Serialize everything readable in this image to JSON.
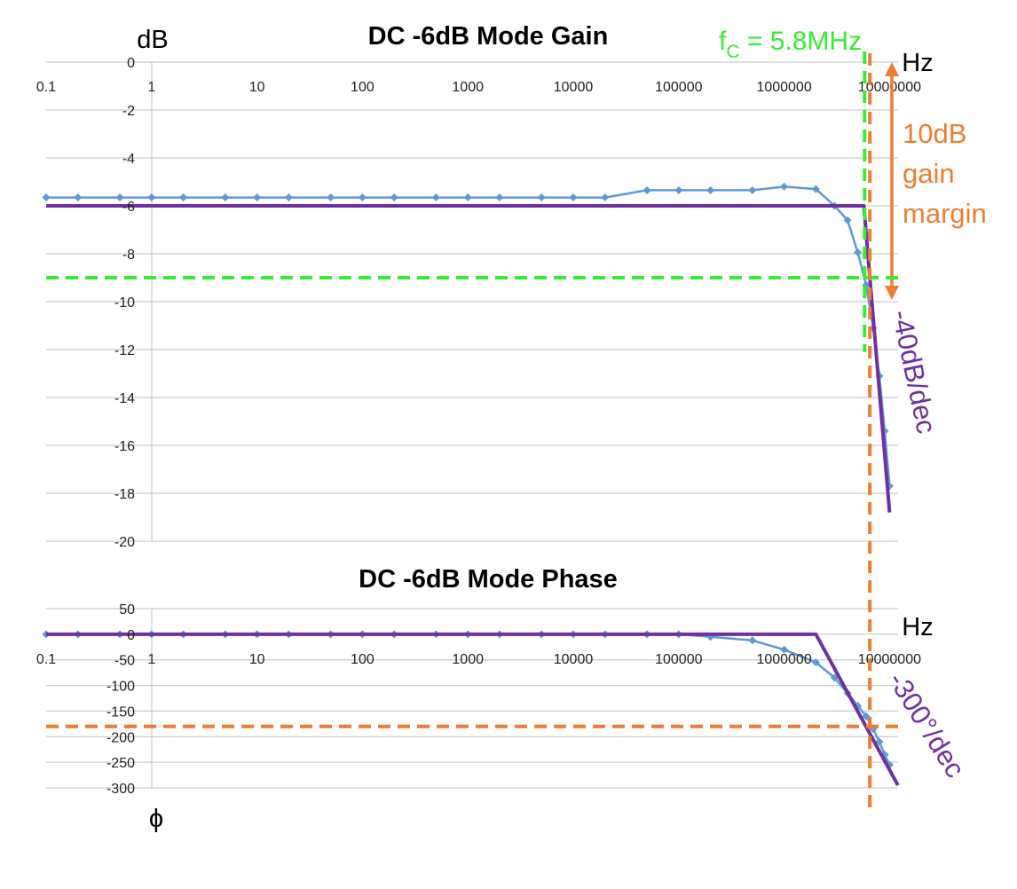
{
  "chart_data": [
    {
      "type": "line",
      "title": "DC -6dB Mode Gain",
      "ylabel": "dB",
      "xlabel": "Hz",
      "xscale": "log",
      "xlim": [
        0.1,
        10000000
      ],
      "ylim": [
        -20,
        0
      ],
      "x_tick_labels": [
        "0.1",
        "1",
        "10",
        "100",
        "1000",
        "10000",
        "100000",
        "1000000",
        "10000000"
      ],
      "y_tick_labels": [
        "0",
        "-2",
        "-4",
        "-6",
        "-8",
        "-10",
        "-12",
        "-14",
        "-16",
        "-18",
        "-20"
      ],
      "grid": true,
      "series": [
        {
          "color": "#5B9BD5",
          "marker": "diamond",
          "x": [
            0.1,
            0.2,
            0.5,
            1,
            2,
            5,
            10,
            20,
            50,
            100,
            200,
            500,
            1000,
            2000,
            5000,
            10000,
            20000,
            50000,
            100000,
            200000,
            500000,
            1000000,
            2000000,
            3000000,
            4000000,
            5000000,
            6000000,
            7000000,
            8000000,
            9000000,
            10000000
          ],
          "y": [
            -5.65,
            -5.65,
            -5.65,
            -5.65,
            -5.65,
            -5.65,
            -5.65,
            -5.65,
            -5.65,
            -5.65,
            -5.65,
            -5.65,
            -5.65,
            -5.65,
            -5.65,
            -5.65,
            -5.65,
            -5.35,
            -5.35,
            -5.35,
            -5.35,
            -5.2,
            -5.3,
            -6.0,
            -6.6,
            -7.95,
            -9.3,
            -11.1,
            -13.1,
            -15.4,
            -17.7
          ]
        },
        {
          "color": "#7030A0",
          "marker": "none",
          "x": [
            0.1,
            5700000,
            10000000
          ],
          "y": [
            -6.0,
            -6.0,
            -18.8
          ]
        }
      ],
      "reference_lines": [
        {
          "orientation": "vertical",
          "value": 5800000,
          "color": "#33EE33",
          "style": "dashed",
          "y_range": [
            -12.1,
            0
          ]
        },
        {
          "orientation": "horizontal",
          "value": -9.0,
          "color": "#33EE33",
          "style": "dashed"
        },
        {
          "orientation": "vertical",
          "value": 6500000,
          "color": "#ED7D31",
          "style": "dashed"
        }
      ],
      "annotations": {
        "fc_main": "f",
        "fc_sub": "C",
        "fc_value": " = 5.8MHz",
        "margin_line1": "10dB",
        "margin_line2": "gain",
        "margin_line3": "margin",
        "slope": "-40dB/dec"
      }
    },
    {
      "type": "line",
      "title": "DC -6dB Mode Phase",
      "ylabel": "ϕ",
      "xlabel": "Hz",
      "xscale": "log",
      "xlim": [
        0.1,
        10000000
      ],
      "ylim": [
        -300,
        50
      ],
      "x_tick_labels": [
        "0.1",
        "1",
        "10",
        "100",
        "1000",
        "10000",
        "100000",
        "1000000",
        "10000000"
      ],
      "y_tick_labels": [
        "50",
        "0",
        "-50",
        "-100",
        "-150",
        "-200",
        "-250",
        "-300"
      ],
      "grid": true,
      "series": [
        {
          "color": "#5B9BD5",
          "marker": "diamond",
          "x": [
            0.1,
            0.2,
            0.5,
            1,
            2,
            5,
            10,
            20,
            50,
            100,
            200,
            500,
            1000,
            2000,
            5000,
            10000,
            20000,
            50000,
            100000,
            200000,
            500000,
            1000000,
            2000000,
            3000000,
            4000000,
            5000000,
            6000000,
            7000000,
            8000000,
            9000000,
            10000000
          ],
          "y": [
            0,
            0,
            0,
            0,
            0,
            0,
            0,
            0,
            0,
            0,
            0,
            0,
            0,
            0,
            0,
            0,
            0,
            0,
            0,
            -5,
            -12,
            -30,
            -55,
            -85,
            -115,
            -140,
            -160,
            -185,
            -210,
            -235,
            -255
          ]
        },
        {
          "color": "#7030A0",
          "marker": "none",
          "x": [
            0.1,
            2000000,
            12000000
          ],
          "y": [
            0,
            0,
            -295
          ]
        }
      ],
      "reference_lines": [
        {
          "orientation": "horizontal",
          "value": -180,
          "color": "#ED7D31",
          "style": "dashed"
        }
      ],
      "annotations": {
        "slope": "-300°/dec"
      }
    }
  ]
}
